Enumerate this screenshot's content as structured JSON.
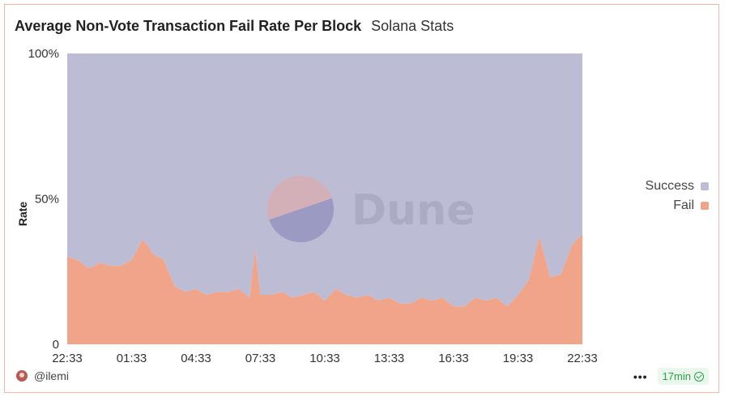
{
  "header": {
    "title": "Average Non-Vote Transaction Fail Rate Per Block",
    "subtitle": "Solana Stats"
  },
  "watermark": {
    "text": "Dune"
  },
  "footer": {
    "author": "@ilemi",
    "more_label": "•••",
    "refresh_label": "17min"
  },
  "colors": {
    "success": "#bcbcd5",
    "fail": "#f0a58b",
    "card_border": "#f0b9a5"
  },
  "chart_data": {
    "type": "area",
    "stacked": true,
    "percent": true,
    "ylabel": "Rate",
    "xlabel": "",
    "ylim": [
      0,
      100
    ],
    "yticks": [
      "0",
      "50%",
      "100%"
    ],
    "ytick_values": [
      0,
      50,
      100
    ],
    "xtick_labels": [
      "22:33",
      "01:33",
      "04:33",
      "07:33",
      "10:33",
      "13:33",
      "16:33",
      "19:33",
      "22:33"
    ],
    "legend_position": "right",
    "x_hours": [
      0,
      0.5,
      1,
      1.5,
      2,
      2.5,
      3,
      3.5,
      3.75,
      4,
      4.5,
      5,
      5.5,
      6,
      6.5,
      7,
      7.5,
      8,
      8.5,
      8.75,
      9,
      9.5,
      10,
      10.5,
      11,
      11.5,
      12,
      12.5,
      13,
      13.5,
      14,
      14.5,
      15,
      15.5,
      16,
      16.5,
      17,
      17.5,
      18,
      18.5,
      19,
      19.5,
      20,
      20.5,
      21,
      21.5,
      22,
      22.5,
      23,
      23.5,
      24
    ],
    "series": [
      {
        "name": "Fail",
        "values": [
          30,
          29,
          26,
          28,
          27,
          27,
          29,
          36,
          34,
          31,
          29,
          20,
          18,
          19,
          17,
          18,
          18,
          19,
          16,
          33,
          17,
          17,
          18,
          16,
          17,
          18,
          15,
          19,
          17,
          16,
          17,
          15,
          16,
          14,
          14,
          16,
          15,
          16,
          13,
          13,
          16,
          15,
          16,
          13,
          17,
          22,
          37,
          23,
          24,
          34,
          38
        ]
      },
      {
        "name": "Success",
        "values": [
          70,
          71,
          74,
          72,
          73,
          73,
          71,
          64,
          66,
          69,
          71,
          80,
          82,
          81,
          83,
          82,
          82,
          81,
          84,
          67,
          83,
          83,
          82,
          84,
          83,
          82,
          85,
          81,
          83,
          84,
          83,
          85,
          84,
          86,
          86,
          84,
          85,
          84,
          87,
          87,
          84,
          85,
          84,
          87,
          83,
          78,
          63,
          77,
          76,
          66,
          62
        ]
      }
    ]
  }
}
